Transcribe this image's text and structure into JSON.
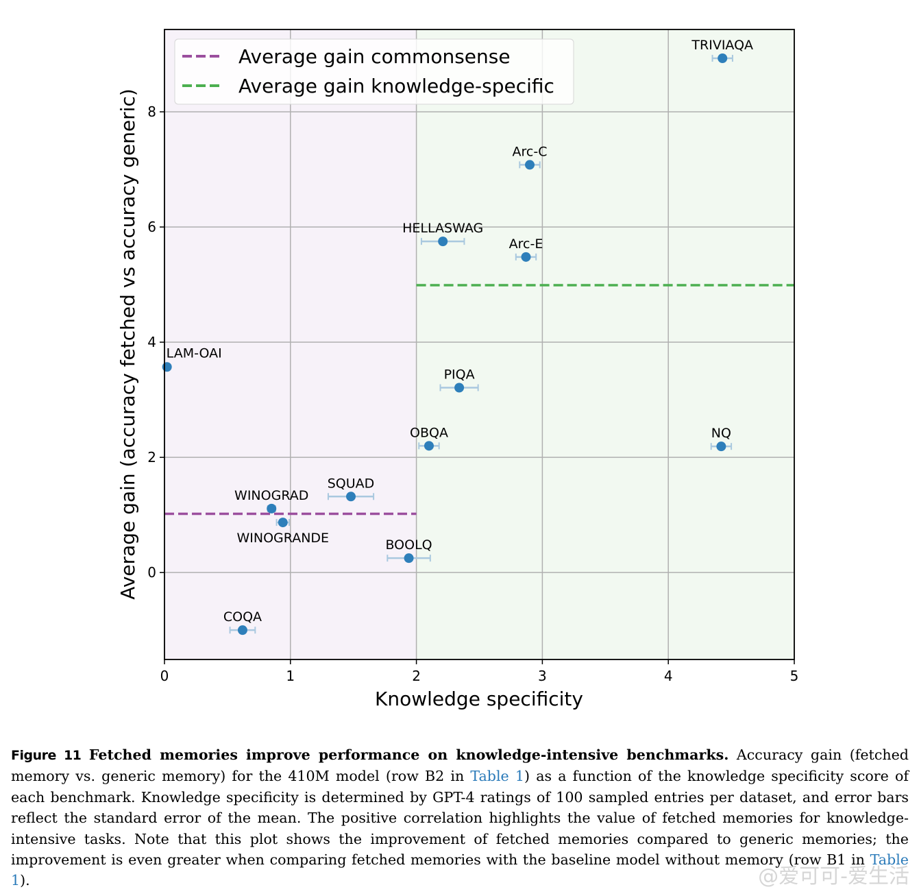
{
  "chart_data": {
    "type": "scatter",
    "title": "",
    "xlabel": "Knowledge specificity",
    "ylabel": "Average gain (accuracy fetched vs accuracy generic)",
    "xlim": [
      0,
      5
    ],
    "ylim": [
      -1.51,
      9.43
    ],
    "xticks": [
      0,
      1,
      2,
      3,
      4,
      5
    ],
    "yticks": [
      0,
      2,
      4,
      6,
      8
    ],
    "grid": true,
    "legend_position": "top-left",
    "regions": [
      {
        "name": "commonsense",
        "x_range": [
          0,
          2
        ],
        "color": "#f7f2f9"
      },
      {
        "name": "knowledge-specific",
        "x_range": [
          2,
          5
        ],
        "color": "#f2f9f1"
      }
    ],
    "reference_lines": [
      {
        "name": "Average gain commonsense",
        "y": 1.02,
        "x_range": [
          0,
          2
        ],
        "color": "#9b4f9e",
        "style": "dashed"
      },
      {
        "name": "Average gain knowledge-specific",
        "y": 4.99,
        "x_range": [
          2,
          5
        ],
        "color": "#4caf50",
        "style": "dashed"
      }
    ],
    "point_color": "#2e7fba",
    "errorbar_color": "#a9c8df",
    "points": [
      {
        "label": "TRIVIAQA",
        "x": 4.43,
        "y": 8.93,
        "xerr": 0.08,
        "label_pos": "above"
      },
      {
        "label": "Arc-C",
        "x": 2.9,
        "y": 7.08,
        "xerr": 0.08,
        "label_pos": "above"
      },
      {
        "label": "HELLASWAG",
        "x": 2.21,
        "y": 5.75,
        "xerr": 0.17,
        "label_pos": "above"
      },
      {
        "label": "Arc-E",
        "x": 2.87,
        "y": 5.48,
        "xerr": 0.08,
        "label_pos": "above"
      },
      {
        "label": "LAM-OAI",
        "x": 0.02,
        "y": 3.57,
        "xerr": 0.0,
        "label_pos": "above-right"
      },
      {
        "label": "PIQA",
        "x": 2.34,
        "y": 3.21,
        "xerr": 0.15,
        "label_pos": "above"
      },
      {
        "label": "OBQA",
        "x": 2.1,
        "y": 2.2,
        "xerr": 0.08,
        "label_pos": "above"
      },
      {
        "label": "NQ",
        "x": 4.42,
        "y": 2.19,
        "xerr": 0.08,
        "label_pos": "above"
      },
      {
        "label": "SQUAD",
        "x": 1.48,
        "y": 1.32,
        "xerr": 0.18,
        "label_pos": "above"
      },
      {
        "label": "WINOGRAD",
        "x": 0.85,
        "y": 1.11,
        "xerr": 0.03,
        "label_pos": "above"
      },
      {
        "label": "WINOGRANDE",
        "x": 0.94,
        "y": 0.87,
        "xerr": 0.05,
        "label_pos": "below"
      },
      {
        "label": "BOOLQ",
        "x": 1.94,
        "y": 0.25,
        "xerr": 0.17,
        "label_pos": "above"
      },
      {
        "label": "COQA",
        "x": 0.62,
        "y": -1.0,
        "xerr": 0.1,
        "label_pos": "above"
      }
    ]
  },
  "caption": {
    "figure_number": "Figure 11",
    "title": "Fetched memories improve performance on knowledge-intensive benchmarks.",
    "part1": " Accuracy gain (fetched memory vs. generic memory) for the 410M model (row B2 in ",
    "ref1": "Table 1",
    "part2": ") as a function of the knowledge specificity score of each benchmark. Knowledge specificity is determined by GPT-4 ratings of 100 sampled entries per dataset, and error bars reflect the standard error of the mean. The positive correlation highlights the value of fetched memories for knowledge-intensive tasks. Note that this plot shows the improvement of fetched memories compared to generic memories; the improvement is even greater when comparing fetched memories with the baseline model without memory (row B1 in ",
    "ref2": "Table 1",
    "part3": ")."
  },
  "watermark": "@爱可可-爱生活"
}
